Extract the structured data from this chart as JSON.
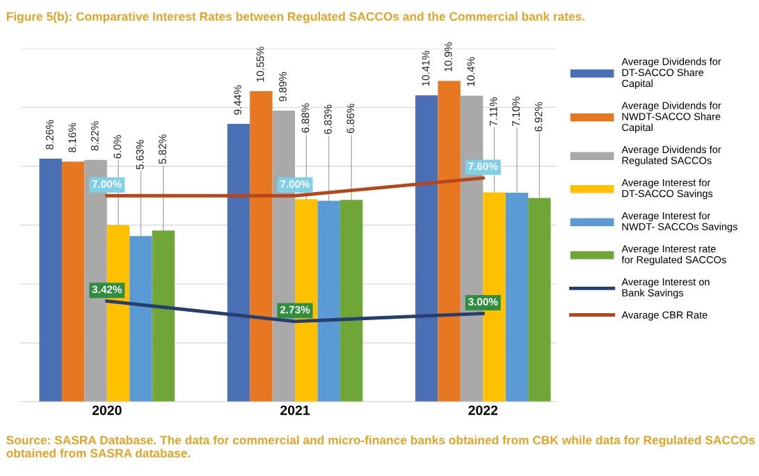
{
  "chart_data": {
    "type": "bar",
    "title": "Figure 5(b): Comparative Interest Rates between Regulated SACCOs and the Commercial bank rates.",
    "categories": [
      "2020",
      "2021",
      "2022"
    ],
    "series": [
      {
        "name": "Average Dividends for\nDT-SACCO Share\nCapital",
        "color": "#4a6fb5",
        "values": [
          8.26,
          9.44,
          10.41
        ],
        "value_labels": [
          "8.26%",
          "9.44%",
          "10.41%"
        ]
      },
      {
        "name": "Average Dividends for\nNWDT-SACCO Share\nCapital",
        "color": "#e87722",
        "values": [
          8.16,
          10.55,
          10.9
        ],
        "value_labels": [
          "8.16%",
          "10.55%",
          "10.9%"
        ]
      },
      {
        "name": "Average Dividends for\nRegulated SACCOs",
        "color": "#a9a9a9",
        "values": [
          8.22,
          9.89,
          10.4
        ],
        "value_labels": [
          "8.22%",
          "9.89%",
          "10.4%"
        ]
      },
      {
        "name": "Average Interest for\nDT-SACCO Savings",
        "color": "#ffc000",
        "values": [
          6.0,
          6.88,
          7.11
        ],
        "value_labels": [
          "6.0%",
          "6.88%",
          "7.11%"
        ]
      },
      {
        "name": "Average Interest for\nNWDT- SACCOs Savings",
        "color": "#5b9bd5",
        "values": [
          5.63,
          6.83,
          7.1
        ],
        "value_labels": [
          "5.63%",
          "6.83%",
          "7.10%"
        ]
      },
      {
        "name": "Average Interest rate\nfor Regulated SACCOs",
        "color": "#70a637",
        "values": [
          5.82,
          6.86,
          6.92
        ],
        "value_labels": [
          "5.82%",
          "6.86%",
          "6.92%"
        ]
      },
      {
        "name": "Average Interest on\nBank Savings",
        "type": "line",
        "color": "#263e6e",
        "values": [
          3.42,
          2.73,
          3.0
        ],
        "value_labels": [
          "3.42%",
          "2.73%",
          "3.00%"
        ]
      },
      {
        "name": "Avarage CBR Rate",
        "type": "line",
        "color": "#b5471b",
        "values": [
          7.0,
          7.0,
          7.6
        ],
        "value_labels": [
          "7.00%",
          "7.00%",
          "7.60%"
        ]
      }
    ],
    "ylim": [
      0,
      12
    ],
    "yticks": [
      {
        "value": 0,
        "label": null
      },
      {
        "value": 2,
        "label": null
      },
      {
        "value": 4,
        "label": null
      },
      {
        "value": 6,
        "label": null
      },
      {
        "value": 8,
        "label": null
      },
      {
        "value": 10,
        "label": null
      },
      {
        "value": 12,
        "label": null
      }
    ],
    "grid": "y",
    "legend": "right",
    "annotations": [
      "Source: SASRA Database. The data for commercial and micro-finance banks obtained from CBK while data for Regulated SACCOs obtained from SASRA database."
    ]
  }
}
